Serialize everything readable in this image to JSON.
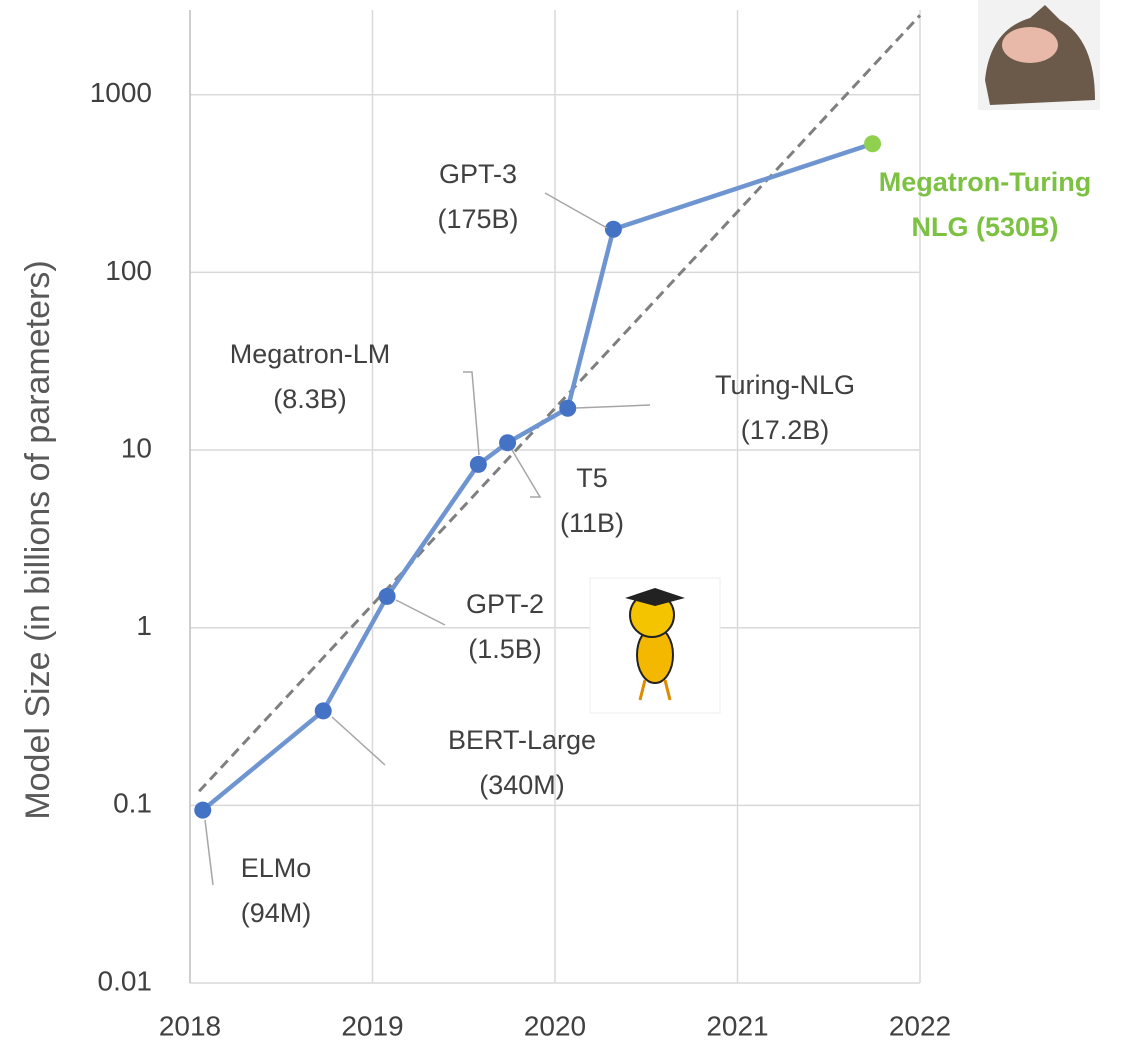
{
  "chart_data": {
    "type": "line",
    "y_label": "Model Size (in billions of parameters)",
    "log_y": true,
    "grid": true,
    "xlim": [
      2018,
      2022
    ],
    "xticks": [
      2018,
      2019,
      2020,
      2021,
      2022
    ],
    "ylim": [
      0.01,
      3000
    ],
    "yticks": [
      0.01,
      0.1,
      1,
      10,
      100,
      1000
    ],
    "series": [
      {
        "color": "#6f95d1",
        "x": [
          2018.07,
          2018.73,
          2019.08,
          2019.58,
          2019.74,
          2020.07,
          2020.32,
          2021.74
        ],
        "values": [
          0.094,
          0.34,
          1.5,
          8.3,
          11,
          17.2,
          175,
          530
        ],
        "marker_colors": [
          "#4472c4",
          "#4472c4",
          "#4472c4",
          "#4472c4",
          "#4472c4",
          "#4472c4",
          "#4472c4",
          "#8fd14f"
        ]
      }
    ],
    "trend_line": {
      "color": "#7f7f7f",
      "x": [
        2018.05,
        2022
      ],
      "values": [
        0.12,
        2800
      ]
    },
    "annotations": [
      {
        "lines": [
          "ELMo",
          "(94M)"
        ]
      },
      {
        "lines": [
          "BERT-Large",
          "(340M)"
        ]
      },
      {
        "lines": [
          "GPT-2",
          "(1.5B)"
        ]
      },
      {
        "lines": [
          "Megatron-LM",
          "(8.3B)"
        ]
      },
      {
        "lines": [
          "T5",
          "(11B)"
        ]
      },
      {
        "lines": [
          "Turing-NLG",
          "(17.2B)"
        ]
      },
      {
        "lines": [
          "GPT-3",
          "(175B)"
        ]
      },
      {
        "lines": [
          "Megatron-Turing",
          "NLG (530B)"
        ],
        "color": "#7cc142"
      }
    ]
  }
}
